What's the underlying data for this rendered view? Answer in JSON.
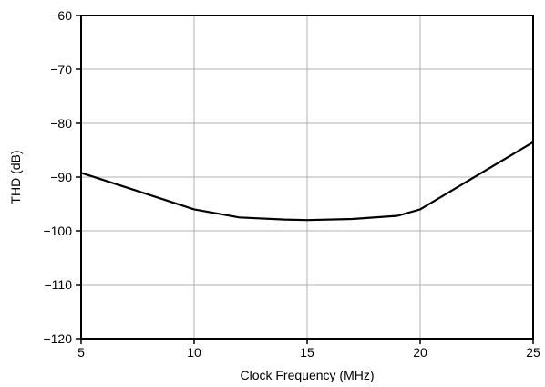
{
  "chart_data": {
    "type": "line",
    "xlabel": "Clock Frequency (MHz)",
    "ylabel": "THD (dB)",
    "xlim": [
      5,
      25
    ],
    "ylim": [
      -120,
      -60
    ],
    "xticks": [
      5,
      10,
      15,
      20,
      25
    ],
    "yticks": [
      -60,
      -70,
      -80,
      -90,
      -100,
      -110,
      -120
    ],
    "xtick_labels": [
      "5",
      "10",
      "15",
      "20",
      "25"
    ],
    "ytick_labels": [
      "−60",
      "−70",
      "−80",
      "−90",
      "−100",
      "−110",
      "−120"
    ],
    "grid": true,
    "series": [
      {
        "color": "#000000",
        "x": [
          5,
          10,
          12,
          14,
          15,
          17,
          19,
          20,
          25
        ],
        "y": [
          -89.2,
          -96.0,
          -97.5,
          -97.9,
          -98.0,
          -97.8,
          -97.2,
          -96.0,
          -83.5
        ]
      }
    ]
  }
}
